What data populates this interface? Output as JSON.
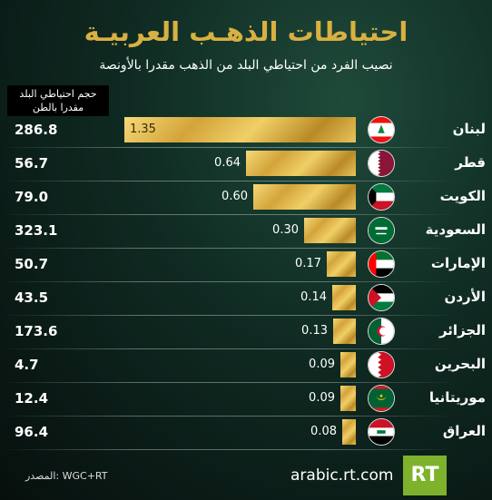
{
  "title": "احتياطات الذهـب العربيـة",
  "subtitle": "نصيب الفرد من احتياطي البلد من الذهب مقدرا بالأونصة",
  "column_header": {
    "line1": "حجم احتياطي البلد",
    "line2": "مقدرا بالطن"
  },
  "footer": {
    "source": "المصدر: WGC+RT",
    "url": "arabic.rt.com",
    "logo": "RT"
  },
  "colors": {
    "gold": "#d9b042",
    "logo_green": "#7fb22c"
  },
  "chart_data": {
    "type": "bar",
    "orientation": "horizontal",
    "title": "احتياطات الذهـب العربيـة",
    "subtitle": "نصيب الفرد من احتياطي البلد من الذهب مقدرا بالأونصة",
    "categories": [
      "لبنان",
      "قطر",
      "الكويت",
      "السعودية",
      "الإمارات",
      "الأردن",
      "الجزائر",
      "البحرين",
      "موريتانيا",
      "العراق"
    ],
    "values": [
      1.35,
      0.64,
      0.6,
      0.3,
      0.17,
      0.14,
      0.13,
      0.09,
      0.09,
      0.08
    ],
    "value_labels": [
      "1.35",
      "0.64",
      "0.60",
      "0.30",
      "0.17",
      "0.14",
      "0.13",
      "0.09",
      "0.09",
      "0.08"
    ],
    "reserves_tonnes": [
      "286.8",
      "56.7",
      "79.0",
      "323.1",
      "50.7",
      "43.5",
      "173.6",
      "4.7",
      "12.4",
      "96.4"
    ],
    "flags": [
      "lebanon-flag",
      "qatar-flag",
      "kuwait-flag",
      "saudi-flag",
      "uae-flag",
      "jordan-flag",
      "algeria-flag",
      "bahrain-flag",
      "mauritania-flag",
      "iraq-flag"
    ],
    "grid": false
  }
}
